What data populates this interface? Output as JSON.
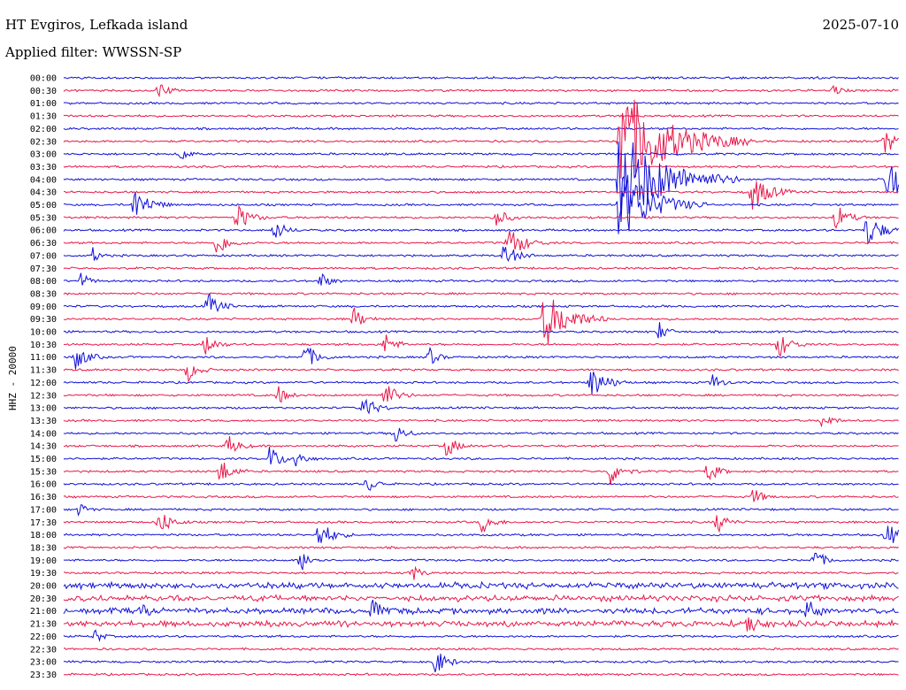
{
  "header": {
    "station": "HT Evgiros, Lefkada island",
    "filter": "Applied filter: WWSSN-SP",
    "date": "2025-07-10",
    "channel": "HHZ - 20000"
  },
  "chart_data": {
    "type": "line",
    "title": "HT Evgiros, Lefkada island",
    "subtitle": "Applied filter: WWSSN-SP",
    "date": "2025-07-10",
    "ylabel": "HHZ - 20000",
    "colors": [
      "#1010d8",
      "#e8184a"
    ],
    "rows": [
      "00:00",
      "00:30",
      "01:00",
      "01:30",
      "02:00",
      "02:30",
      "03:00",
      "03:30",
      "04:00",
      "04:30",
      "05:00",
      "05:30",
      "06:00",
      "06:30",
      "07:00",
      "07:30",
      "08:00",
      "08:30",
      "09:00",
      "09:30",
      "10:00",
      "10:30",
      "11:00",
      "11:30",
      "12:00",
      "12:30",
      "13:00",
      "13:30",
      "14:00",
      "14:30",
      "15:00",
      "15:30",
      "16:00",
      "16:30",
      "17:00",
      "17:30",
      "18:00",
      "18:30",
      "19:00",
      "19:30",
      "20:00",
      "20:30",
      "21:00",
      "21:30",
      "22:00",
      "22:30",
      "23:00",
      "23:30"
    ]
  }
}
